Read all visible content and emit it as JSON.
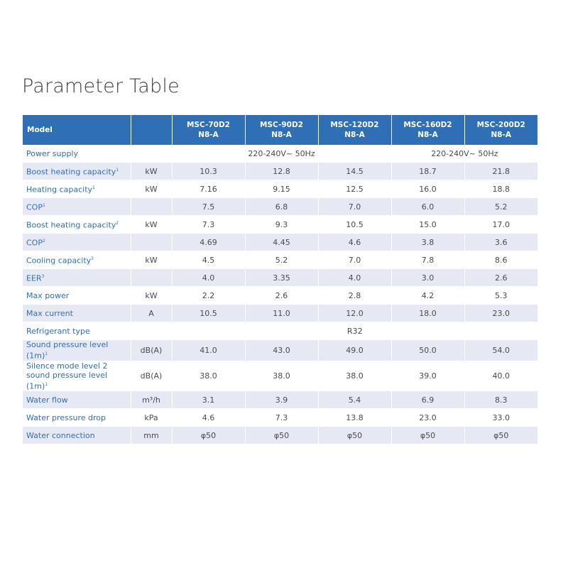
{
  "title": "Parameter Table",
  "table": {
    "header": {
      "model_label": "Model",
      "unit_label": "",
      "models": [
        {
          "line1": "MSC-70D2",
          "line2": "N8-A"
        },
        {
          "line1": "MSC-90D2",
          "line2": "N8-A"
        },
        {
          "line1": "MSC-120D2",
          "line2": "N8-A"
        },
        {
          "line1": "MSC-160D2",
          "line2": "N8-A"
        },
        {
          "line1": "MSC-200D2",
          "line2": "N8-A"
        }
      ]
    },
    "rows": [
      {
        "param": "Power supply",
        "unit": "",
        "merged": [
          {
            "text": "220-240V~ 50Hz",
            "span": 3
          },
          {
            "text": "220-240V~ 50Hz",
            "span": 2
          }
        ]
      },
      {
        "param": "Boost heating capacity",
        "sup": "1",
        "unit": "kW",
        "values": [
          "10.3",
          "12.8",
          "14.5",
          "18.7",
          "21.8"
        ]
      },
      {
        "param": "Heating capacity",
        "sup": "1",
        "unit": "kW",
        "values": [
          "7.16",
          "9.15",
          "12.5",
          "16.0",
          "18.8"
        ]
      },
      {
        "param": "COP",
        "sup": "1",
        "unit": "",
        "values": [
          "7.5",
          "6.8",
          "7.0",
          "6.0",
          "5.2"
        ]
      },
      {
        "param": "Boost heating capacity",
        "sup": "2",
        "unit": "kW",
        "values": [
          "7.3",
          "9.3",
          "10.5",
          "15.0",
          "17.0"
        ]
      },
      {
        "param": "COP",
        "sup": "2",
        "unit": "",
        "values": [
          "4.69",
          "4.45",
          "4.6",
          "3.8",
          "3.6"
        ]
      },
      {
        "param": "Cooling capacity",
        "sup": "3",
        "unit": "kW",
        "values": [
          "4.5",
          "5.2",
          "7.0",
          "7.8",
          "8.6"
        ]
      },
      {
        "param": "EER",
        "sup": "3",
        "unit": "",
        "values": [
          "4.0",
          "3.35",
          "4.0",
          "3.0",
          "2.6"
        ]
      },
      {
        "param": "Max power",
        "unit": "kW",
        "values": [
          "2.2",
          "2.6",
          "2.8",
          "4.2",
          "5.3"
        ]
      },
      {
        "param": "Max current",
        "unit": "A",
        "values": [
          "10.5",
          "11.0",
          "12.0",
          "18.0",
          "23.0"
        ]
      },
      {
        "param": "Refrigerant type",
        "unit": "",
        "merged": [
          {
            "text": "R32",
            "span": 5
          }
        ]
      },
      {
        "param": "Sound pressure level (1m)",
        "sup": "1",
        "unit": "dB(A)",
        "values": [
          "41.0",
          "43.0",
          "49.0",
          "50.0",
          "54.0"
        ]
      },
      {
        "param": "Silence mode level 2 sound pressure level (1m)",
        "sup": "1",
        "unit": "dB(A)",
        "values": [
          "38.0",
          "38.0",
          "38.0",
          "39.0",
          "40.0"
        ],
        "tall": true
      },
      {
        "param": "Water flow",
        "unit": "m³/h",
        "values": [
          "3.1",
          "3.9",
          "5.4",
          "6.9",
          "8.3"
        ]
      },
      {
        "param": "Water pressure drop",
        "unit": "kPa",
        "values": [
          "4.6",
          "7.3",
          "13.8",
          "23.0",
          "33.0"
        ]
      },
      {
        "param": "Water connection",
        "unit": "mm",
        "values": [
          "φ50",
          "φ50",
          "φ50",
          "φ50",
          "φ50"
        ]
      }
    ]
  }
}
